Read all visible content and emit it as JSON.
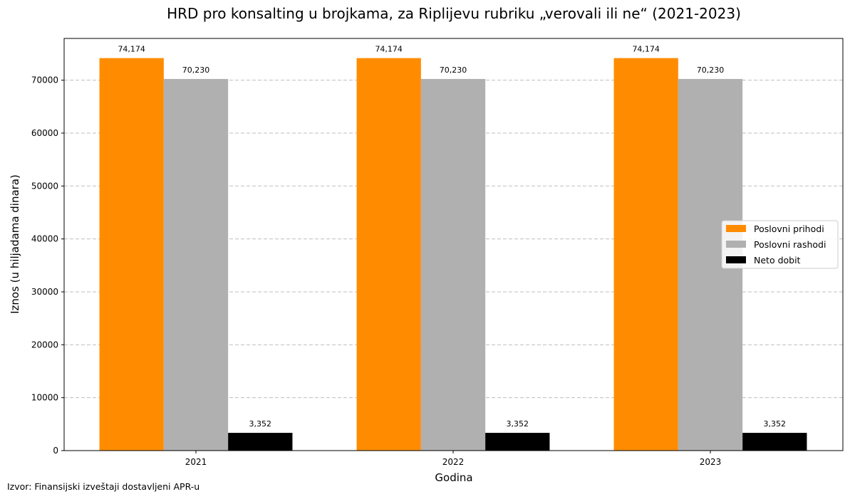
{
  "chart_data": {
    "type": "bar",
    "title": "HRD pro konsalting u brojkama, za Riplijevu rubriku „verovali ili ne“ (2021-2023)",
    "xlabel": "Godina",
    "ylabel": "Iznos (u hiljadama dinara)",
    "categories": [
      "2021",
      "2022",
      "2023"
    ],
    "series": [
      {
        "name": "Poslovni prihodi",
        "values": [
          74174,
          74174,
          74174
        ],
        "labels": [
          "74,174",
          "74,174",
          "74,174"
        ],
        "color": "#ff8c00"
      },
      {
        "name": "Poslovni rashodi",
        "values": [
          70230,
          70230,
          70230
        ],
        "labels": [
          "70,230",
          "70,230",
          "70,230"
        ],
        "color": "#b0b0b0"
      },
      {
        "name": "Neto dobit",
        "values": [
          3352,
          3352,
          3352
        ],
        "labels": [
          "3,352",
          "3,352",
          "3,352"
        ],
        "color": "#000000"
      }
    ],
    "ylim": [
      0,
      77888
    ],
    "yticks": [
      0,
      10000,
      20000,
      30000,
      40000,
      50000,
      60000,
      70000
    ],
    "grid": "y-dashed",
    "legend_position": "center-right"
  },
  "source_note": "Izvor: Finansijski izveštaji dostavljeni APR-u"
}
